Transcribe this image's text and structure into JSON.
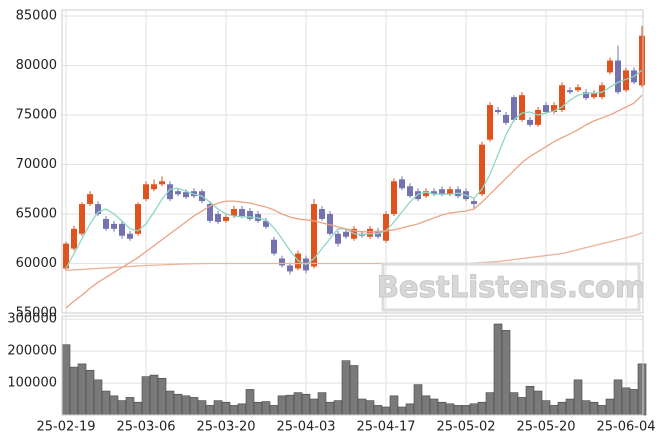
{
  "watermark": "BestListens.com",
  "chart_data": [
    {
      "type": "candlestick",
      "categories": [
        "25-02-19",
        null,
        null,
        null,
        null,
        null,
        null,
        null,
        null,
        null,
        "25-03-06",
        null,
        null,
        null,
        null,
        null,
        null,
        null,
        null,
        null,
        "25-03-20",
        null,
        null,
        null,
        null,
        null,
        null,
        null,
        null,
        null,
        "25-04-03",
        null,
        null,
        null,
        null,
        null,
        null,
        null,
        null,
        null,
        "25-04-17",
        null,
        null,
        null,
        null,
        null,
        null,
        null,
        null,
        null,
        "25-05-02",
        null,
        null,
        null,
        null,
        null,
        null,
        null,
        null,
        null,
        "25-05-20",
        null,
        null,
        null,
        null,
        null,
        null,
        null,
        null,
        null,
        "25-06-04",
        null,
        null
      ],
      "open": [
        59500,
        61500,
        63000,
        66000,
        66000,
        64500,
        64000,
        64000,
        63000,
        63000,
        66500,
        67500,
        68000,
        68000,
        67300,
        67200,
        67300,
        67300,
        66000,
        65000,
        64300,
        64800,
        65500,
        65300,
        65000,
        64300,
        62400,
        60500,
        59800,
        59500,
        60500,
        59700,
        65500,
        65000,
        63000,
        63200,
        62500,
        63000,
        62700,
        63300,
        62300,
        65000,
        68500,
        67800,
        67300,
        66800,
        67300,
        67500,
        67000,
        67500,
        67300,
        66300,
        67000,
        72500,
        75500,
        75000,
        76800,
        74500,
        74500,
        74000,
        76000,
        75300,
        75500,
        77500,
        77500,
        77300,
        76800,
        76800,
        79300,
        80500,
        77500,
        79500,
        78000
      ],
      "high": [
        62200,
        63800,
        66200,
        67300,
        66300,
        64800,
        64300,
        64300,
        63300,
        66200,
        68300,
        68500,
        68800,
        68300,
        67600,
        67500,
        67600,
        67500,
        66300,
        65300,
        65000,
        65800,
        65800,
        65600,
        65300,
        64600,
        62700,
        60800,
        60100,
        61300,
        60800,
        66500,
        65800,
        65300,
        63300,
        63500,
        63800,
        63300,
        63800,
        63600,
        65300,
        68600,
        68800,
        68100,
        67600,
        67600,
        67600,
        67800,
        67800,
        67800,
        67600,
        66600,
        72300,
        76300,
        75800,
        75300,
        77000,
        77300,
        74800,
        75800,
        76300,
        76300,
        78300,
        77800,
        78100,
        77600,
        77500,
        78300,
        80800,
        82000,
        79800,
        79800,
        84000
      ],
      "low": [
        59300,
        61300,
        62800,
        65800,
        64800,
        63300,
        63200,
        62500,
        62300,
        62800,
        66300,
        67300,
        67800,
        66300,
        66800,
        66500,
        66600,
        66100,
        64100,
        64000,
        64100,
        64600,
        64600,
        64300,
        64100,
        63500,
        60800,
        59600,
        58900,
        59300,
        59000,
        59500,
        64300,
        62800,
        61700,
        62500,
        62300,
        62600,
        62500,
        62500,
        62100,
        64800,
        67400,
        66600,
        66300,
        66600,
        66800,
        66800,
        66800,
        66600,
        66300,
        65600,
        66800,
        72300,
        75100,
        74000,
        74300,
        74300,
        73800,
        73800,
        75100,
        75100,
        75300,
        77100,
        77300,
        76500,
        76600,
        76600,
        79100,
        77100,
        77300,
        78100,
        77800
      ],
      "close": [
        62000,
        63500,
        66000,
        67000,
        65000,
        63500,
        63500,
        62800,
        62500,
        66000,
        68000,
        68000,
        68300,
        66500,
        67000,
        66700,
        66800,
        66300,
        64300,
        64200,
        64700,
        65500,
        64800,
        64500,
        64300,
        63700,
        61000,
        59800,
        59200,
        61000,
        59300,
        66000,
        64500,
        63000,
        62000,
        62700,
        63500,
        62800,
        63500,
        62700,
        65000,
        68300,
        67600,
        66800,
        66500,
        67300,
        67000,
        67000,
        67500,
        66800,
        66500,
        66000,
        72000,
        76000,
        75300,
        74200,
        74500,
        77000,
        74000,
        75500,
        75300,
        76000,
        78000,
        77300,
        77800,
        76700,
        77200,
        78000,
        80500,
        77300,
        79500,
        78300,
        83000
      ],
      "up_color": "#e0521e",
      "down_color": "#7473b0",
      "lines": [
        {
          "color": "#8fd6c4",
          "values": [
            59500,
            61000,
            62500,
            64000,
            65200,
            65500,
            65000,
            64300,
            63500,
            63300,
            64000,
            65200,
            66500,
            67500,
            67600,
            67300,
            67000,
            66800,
            66200,
            65500,
            65000,
            64800,
            64700,
            64700,
            64600,
            64400,
            63600,
            62500,
            61300,
            60300,
            59900,
            60500,
            61500,
            62500,
            63500,
            63500,
            63000,
            62900,
            63000,
            63000,
            63300,
            64200,
            65200,
            66200,
            67000,
            67200,
            67000,
            67000,
            67000,
            67100,
            66900,
            66600,
            67500,
            69000,
            71000,
            73000,
            74500,
            75200,
            75300,
            75000,
            75200,
            75400,
            75800,
            76500,
            77000,
            77200,
            77200,
            77300,
            77800,
            78300,
            78600,
            78900,
            79500
          ]
        },
        {
          "color": "#e9a483",
          "values": [
            55500,
            56200,
            56800,
            57500,
            58100,
            58600,
            59100,
            59600,
            60100,
            60600,
            61200,
            61800,
            62400,
            63000,
            63600,
            64200,
            64800,
            65300,
            65800,
            66100,
            66300,
            66300,
            66200,
            66100,
            65900,
            65700,
            65400,
            65000,
            64700,
            64500,
            64400,
            64300,
            64100,
            63900,
            63700,
            63500,
            63300,
            63200,
            63200,
            63200,
            63300,
            63400,
            63600,
            63800,
            64000,
            64300,
            64600,
            64900,
            65100,
            65200,
            65300,
            65500,
            66200,
            67000,
            67800,
            68600,
            69400,
            70200,
            70800,
            71300,
            71800,
            72300,
            72700,
            73100,
            73500,
            74000,
            74400,
            74700,
            75000,
            75400,
            75800,
            76200,
            77000
          ]
        },
        {
          "color": "#eab59a",
          "values": [
            59300,
            59350,
            59400,
            59450,
            59500,
            59550,
            59600,
            59650,
            59700,
            59750,
            59800,
            59830,
            59860,
            59890,
            59920,
            59950,
            59970,
            59990,
            60000,
            60000,
            60000,
            60000,
            60000,
            60000,
            60000,
            60000,
            60000,
            60000,
            60000,
            60000,
            60000,
            60000,
            60000,
            60000,
            60000,
            60000,
            60000,
            60000,
            60000,
            60000,
            60000,
            60000,
            60000,
            60000,
            60000,
            60000,
            60000,
            60000,
            60000,
            60000,
            60000,
            60050,
            60100,
            60150,
            60200,
            60300,
            60400,
            60500,
            60600,
            60700,
            60800,
            60900,
            61000,
            61200,
            61400,
            61600,
            61800,
            62000,
            62200,
            62400,
            62600,
            62800,
            63100
          ]
        }
      ],
      "ylim": [
        55000,
        85600
      ],
      "yticks": [
        55000,
        60000,
        65000,
        70000,
        75000,
        80000,
        85000
      ],
      "grid": true
    },
    {
      "type": "bar",
      "color": "#7a7a7a",
      "values": [
        220000,
        150000,
        160000,
        140000,
        110000,
        75000,
        60000,
        45000,
        55000,
        40000,
        120000,
        125000,
        115000,
        75000,
        65000,
        60000,
        55000,
        45000,
        30000,
        45000,
        40000,
        30000,
        35000,
        80000,
        40000,
        42000,
        30000,
        60000,
        62000,
        70000,
        65000,
        50000,
        70000,
        40000,
        45000,
        170000,
        155000,
        50000,
        45000,
        30000,
        25000,
        60000,
        25000,
        35000,
        95000,
        60000,
        50000,
        40000,
        35000,
        30000,
        30000,
        35000,
        40000,
        70000,
        285000,
        265000,
        70000,
        55000,
        90000,
        75000,
        45000,
        30000,
        40000,
        50000,
        110000,
        45000,
        40000,
        30000,
        50000,
        110000,
        85000,
        80000,
        160000
      ],
      "ylim": [
        0,
        310000
      ],
      "yticks": [
        100000,
        200000,
        300000
      ],
      "grid": true
    }
  ]
}
